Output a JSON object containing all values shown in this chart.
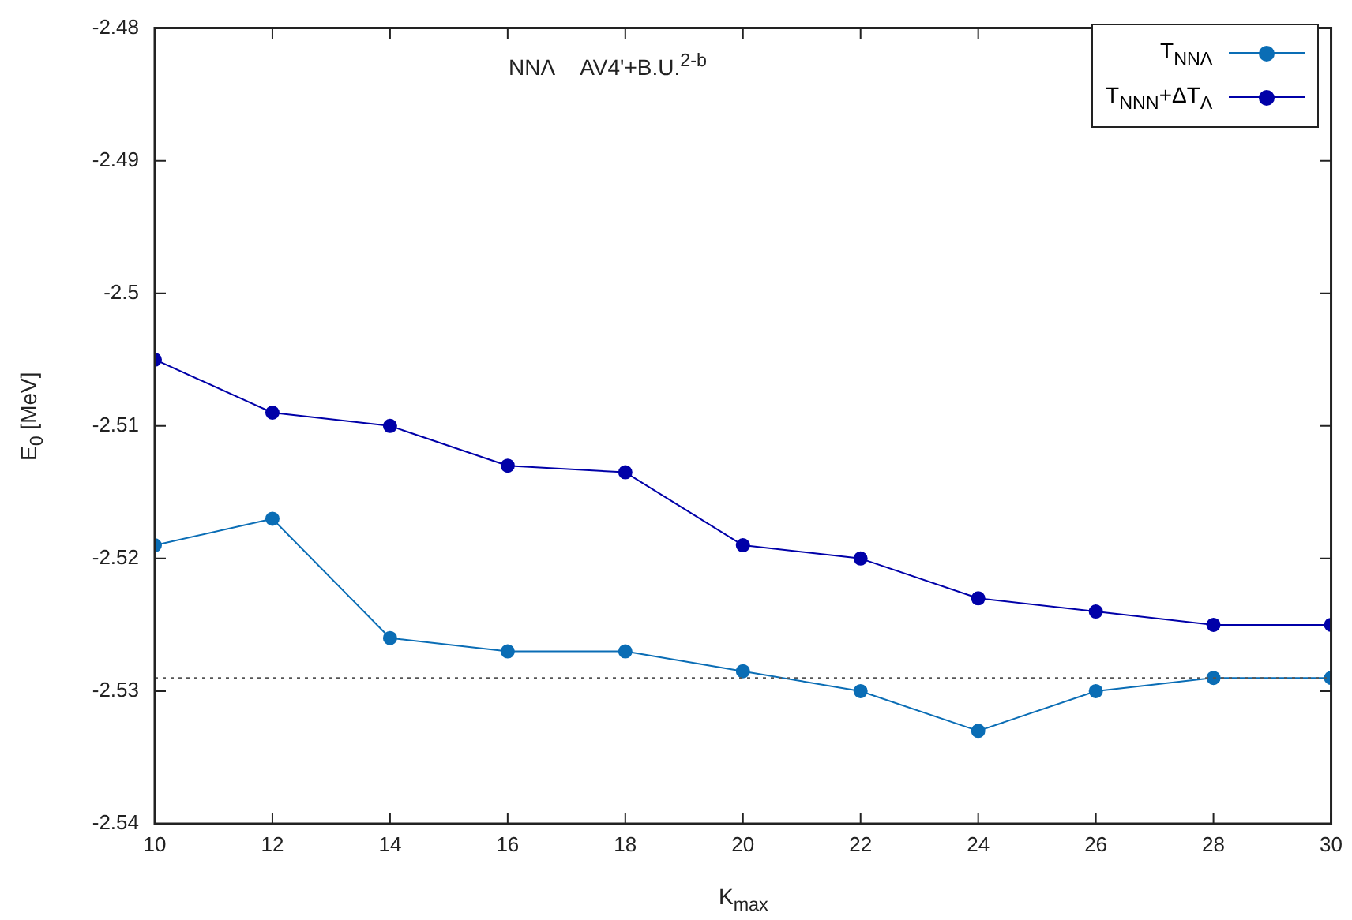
{
  "chart_data": {
    "type": "line",
    "annotations": [
      "NNΛ   AV4'+B.U.$^{2-b}$"
    ],
    "xlabel": "K$_{max}$",
    "ylabel": "E$_{0}$ [MeV]",
    "x": [
      10,
      12,
      14,
      16,
      18,
      20,
      22,
      24,
      26,
      28,
      30
    ],
    "series": [
      {
        "name": "T$_{NNΛ}$",
        "color": "#0a6db5",
        "values": [
          -2.519,
          -2.517,
          -2.526,
          -2.527,
          -2.527,
          -2.5285,
          -2.53,
          -2.533,
          -2.53,
          -2.529,
          -2.529
        ]
      },
      {
        "name": "T$_{NNN}$+ΔT$_{Λ}$",
        "color": "#0000a8",
        "values": [
          -2.505,
          -2.509,
          -2.51,
          -2.513,
          -2.5135,
          -2.519,
          -2.52,
          -2.523,
          -2.524,
          -2.525,
          -2.525
        ]
      }
    ],
    "xlim": [
      10,
      30
    ],
    "xticks": [
      10,
      12,
      14,
      16,
      18,
      20,
      22,
      24,
      26,
      28,
      30
    ],
    "ylim": [
      -2.54,
      -2.48
    ],
    "yticks": [
      -2.54,
      -2.53,
      -2.52,
      -2.51,
      -2.5,
      -2.49,
      -2.48
    ],
    "ref_lines": [
      {
        "axis": "y",
        "value": -2.529,
        "color": "#555555",
        "line_style": "dotted"
      }
    ],
    "grid": false,
    "legend": "top right",
    "marker": "circle",
    "line_style": "solid"
  }
}
